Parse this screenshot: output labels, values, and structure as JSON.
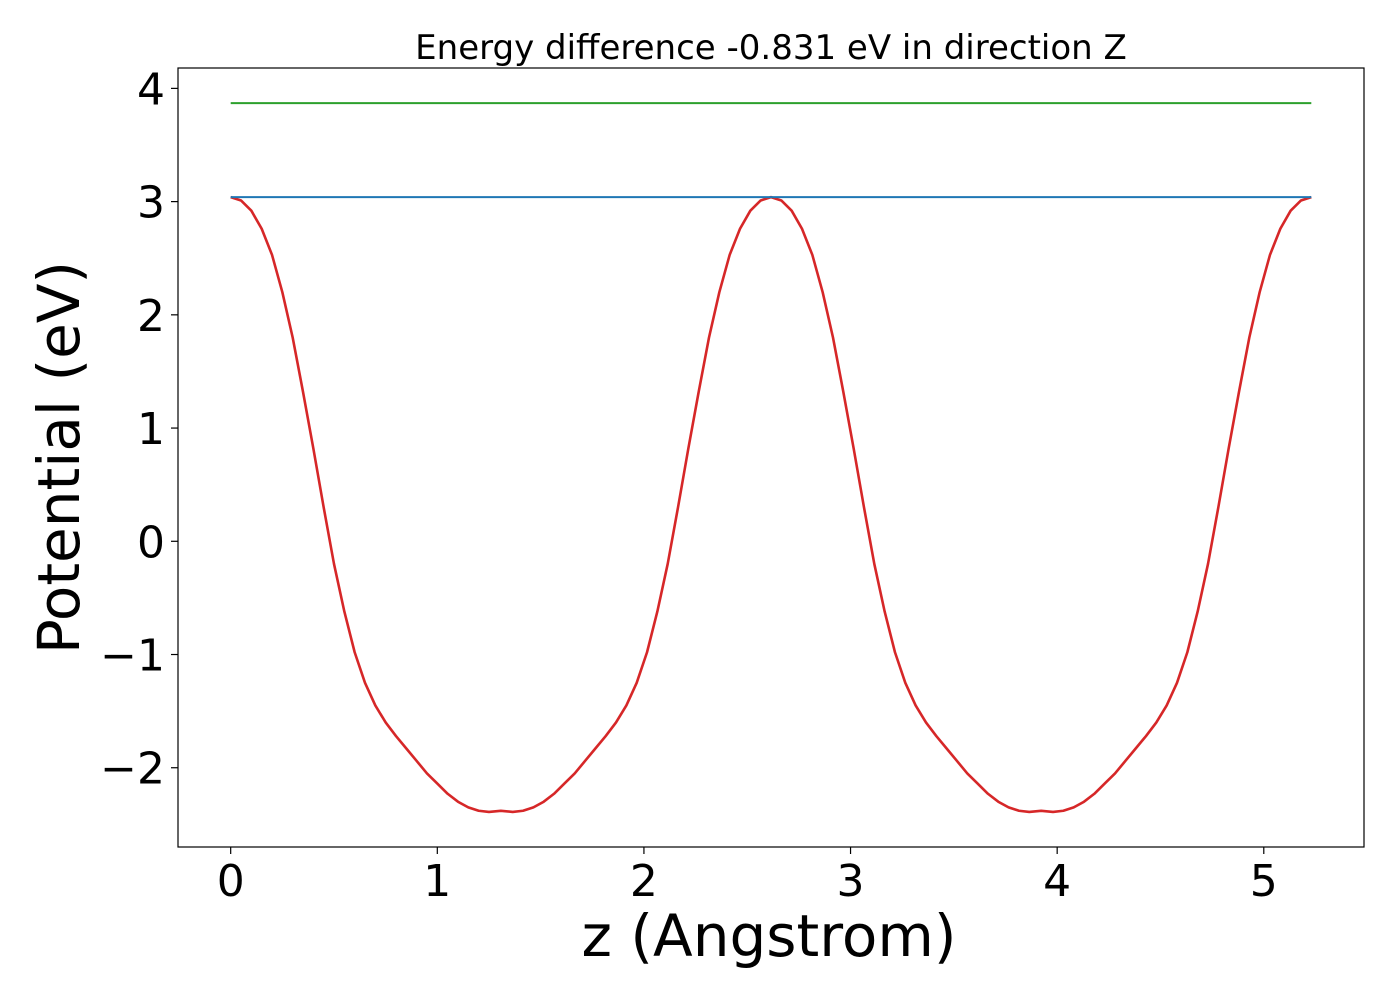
{
  "chart_data": {
    "type": "line",
    "title": "Energy difference -0.831 eV in direction Z",
    "xlabel": "z (Angstrom)",
    "ylabel": "Potential (eV)",
    "xlim": [
      -0.255,
      5.485
    ],
    "ylim": [
      -2.7,
      4.18
    ],
    "xticks": [
      0,
      1,
      2,
      3,
      4,
      5
    ],
    "xtick_labels": [
      "0",
      "1",
      "2",
      "3",
      "4",
      "5"
    ],
    "yticks": [
      -2,
      -1,
      0,
      1,
      2,
      3,
      4
    ],
    "ytick_labels": [
      "−2",
      "−1",
      "0",
      "1",
      "2",
      "3",
      "4"
    ],
    "grid": false,
    "period": 2.615,
    "series": [
      {
        "color": "#d62728",
        "x": [
          0,
          0.05,
          0.1,
          0.15,
          0.2,
          0.25,
          0.3,
          0.35,
          0.4,
          0.45,
          0.5,
          0.55,
          0.6,
          0.65,
          0.7,
          0.75,
          0.8,
          0.85,
          0.9,
          0.95,
          1.0,
          1.05,
          1.1,
          1.15,
          1.2,
          1.25,
          1.3075
        ],
        "y": [
          3.04,
          3.01,
          2.92,
          2.76,
          2.53,
          2.2,
          1.8,
          1.32,
          0.82,
          0.3,
          -0.2,
          -0.62,
          -0.98,
          -1.25,
          -1.45,
          -1.6,
          -1.72,
          -1.83,
          -1.94,
          -2.05,
          -2.14,
          -2.23,
          -2.3,
          -2.35,
          -2.38,
          -2.39,
          -2.38
        ]
      },
      {
        "color": "#1f77b4",
        "x": [
          0,
          5.23
        ],
        "y": [
          3.04,
          3.04
        ]
      },
      {
        "color": "#2ca02c",
        "x": [
          0,
          5.23
        ],
        "y": [
          3.87,
          3.87
        ]
      }
    ]
  }
}
